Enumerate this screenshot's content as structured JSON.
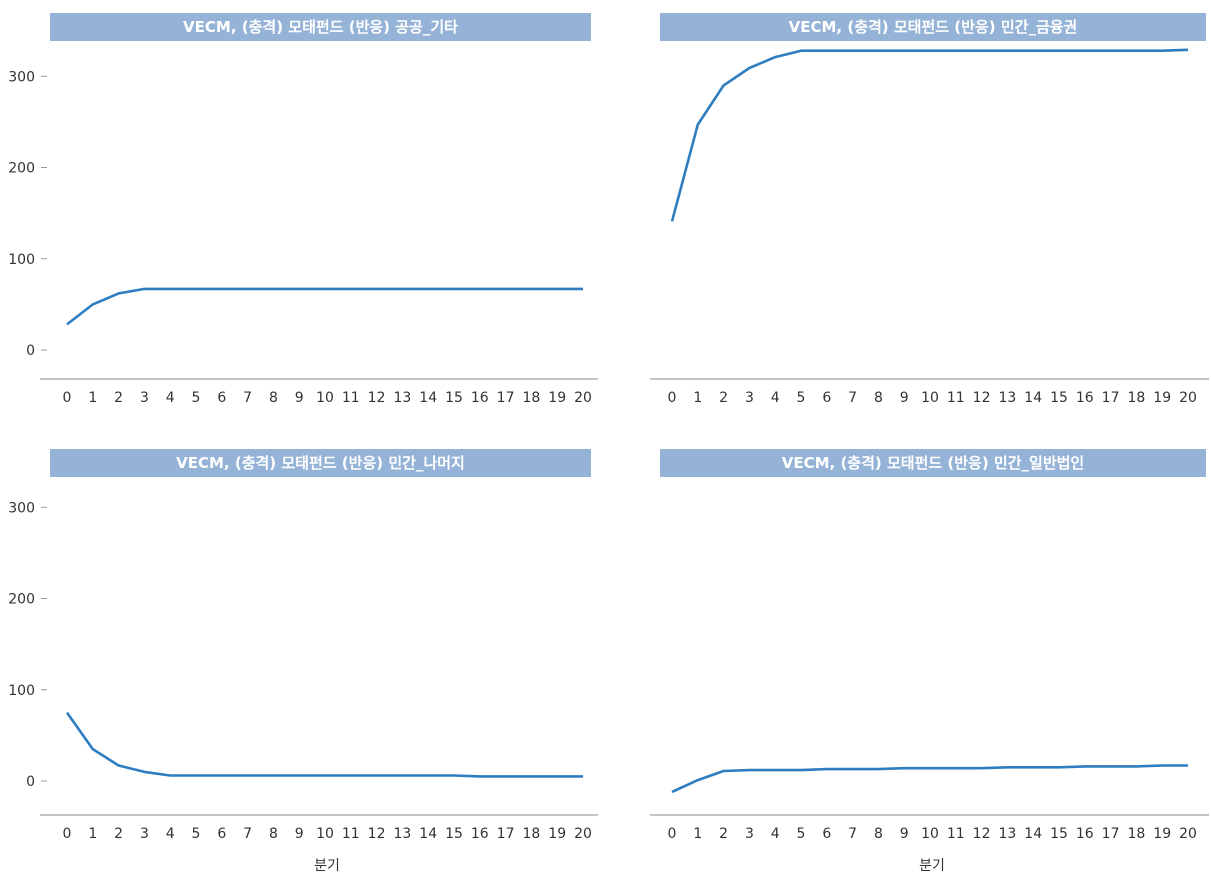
{
  "chart_data": [
    {
      "type": "line",
      "title": "VECM, (충격) 모태펀드 (반응) 공공_기타",
      "xlabel": "",
      "ylabel": "",
      "categories": [
        "0",
        "1",
        "2",
        "3",
        "4",
        "5",
        "6",
        "7",
        "8",
        "9",
        "10",
        "11",
        "12",
        "13",
        "14",
        "15",
        "16",
        "17",
        "18",
        "19",
        "20"
      ],
      "y_ticks": [
        "0",
        "100",
        "200",
        "300"
      ],
      "ylim": [
        -20,
        340
      ],
      "color": "#2e7dc0",
      "series": [
        {
          "values": [
            28,
            50,
            62,
            67,
            67,
            67,
            67,
            67,
            67,
            67,
            67,
            67,
            67,
            67,
            67,
            67,
            67,
            67,
            67,
            67,
            67
          ]
        }
      ]
    },
    {
      "type": "line",
      "title": "VECM, (충격) 모태펀드 (반응) 민간_금융권",
      "xlabel": "",
      "ylabel": "",
      "categories": [
        "0",
        "1",
        "2",
        "3",
        "4",
        "5",
        "6",
        "7",
        "8",
        "9",
        "10",
        "11",
        "12",
        "13",
        "14",
        "15",
        "16",
        "17",
        "18",
        "19",
        "20"
      ],
      "y_ticks": [],
      "ylim": [
        -20,
        340
      ],
      "color": "#2e7dc0",
      "series": [
        {
          "values": [
            141,
            247,
            290,
            309,
            321,
            328,
            328,
            328,
            328,
            328,
            328,
            328,
            328,
            328,
            328,
            328,
            328,
            328,
            328,
            328,
            329
          ]
        }
      ]
    },
    {
      "type": "line",
      "title": "VECM, (충격) 모태펀드 (반응) 민간_나머지",
      "xlabel": "분기",
      "ylabel": "",
      "categories": [
        "0",
        "1",
        "2",
        "3",
        "4",
        "5",
        "6",
        "7",
        "8",
        "9",
        "10",
        "11",
        "12",
        "13",
        "14",
        "15",
        "16",
        "17",
        "18",
        "19",
        "20"
      ],
      "y_ticks": [
        "0",
        "100",
        "200",
        "300"
      ],
      "ylim": [
        -20,
        340
      ],
      "color": "#2e7dc0",
      "series": [
        {
          "values": [
            75,
            35,
            17,
            10,
            6,
            6,
            6,
            6,
            6,
            6,
            6,
            6,
            6,
            6,
            6,
            6,
            5,
            5,
            5,
            5,
            5
          ]
        }
      ]
    },
    {
      "type": "line",
      "title": "VECM, (충격) 모태펀드 (반응) 민간_일반법인",
      "xlabel": "분기",
      "ylabel": "",
      "categories": [
        "0",
        "1",
        "2",
        "3",
        "4",
        "5",
        "6",
        "7",
        "8",
        "9",
        "10",
        "11",
        "12",
        "13",
        "14",
        "15",
        "16",
        "17",
        "18",
        "19",
        "20"
      ],
      "y_ticks": [],
      "ylim": [
        -20,
        340
      ],
      "color": "#2e7dc0",
      "series": [
        {
          "values": [
            -12,
            1,
            11,
            12,
            12,
            12,
            13,
            13,
            13,
            14,
            14,
            14,
            14,
            15,
            15,
            15,
            16,
            16,
            16,
            17,
            17
          ]
        }
      ]
    }
  ]
}
